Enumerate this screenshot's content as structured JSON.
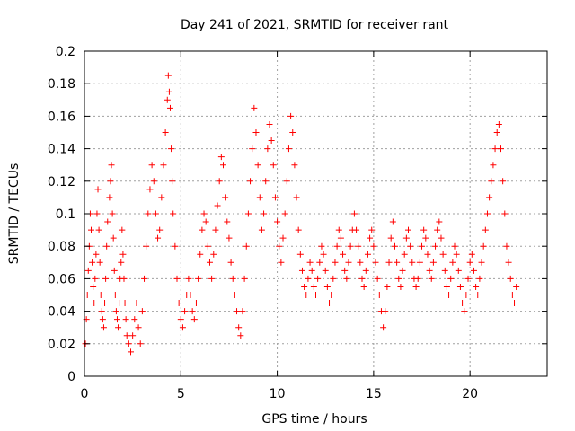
{
  "chart_data": {
    "type": "scatter",
    "title": "Day 241 of 2021, SRMTID for receiver rant",
    "xlabel": "GPS time / hours",
    "ylabel": "SRMTID / TECUs",
    "xlim": [
      0,
      24
    ],
    "ylim": [
      0,
      0.2
    ],
    "xticks": [
      0,
      5,
      10,
      15,
      20
    ],
    "xtick_labels": [
      "0",
      "5",
      "10",
      "15",
      "20"
    ],
    "yticks": [
      0,
      0.02,
      0.04,
      0.06,
      0.08,
      0.1,
      0.12,
      0.14,
      0.16,
      0.18,
      0.2
    ],
    "ytick_labels": [
      "0",
      "0.02",
      "0.04",
      "0.06",
      "0.08",
      "0.1",
      "0.12",
      "0.14",
      "0.16",
      "0.18",
      "0.2"
    ],
    "grid": true,
    "marker": "plus",
    "color": "#ff0000",
    "series": [
      {
        "name": "SRMTID",
        "x": [
          0.05,
          0.1,
          0.15,
          0.2,
          0.25,
          0.3,
          0.35,
          0.4,
          0.45,
          0.5,
          0.55,
          0.6,
          0.65,
          0.7,
          0.75,
          0.8,
          0.85,
          0.9,
          0.95,
          1.0,
          1.05,
          1.1,
          1.15,
          1.2,
          1.3,
          1.35,
          1.4,
          1.45,
          1.5,
          1.55,
          1.6,
          1.65,
          1.7,
          1.75,
          1.8,
          1.85,
          1.9,
          1.95,
          2.0,
          2.05,
          2.1,
          2.15,
          2.2,
          2.3,
          2.4,
          2.5,
          2.6,
          2.7,
          2.8,
          2.9,
          3.0,
          3.1,
          3.2,
          3.3,
          3.4,
          3.5,
          3.6,
          3.7,
          3.8,
          3.9,
          4.0,
          4.1,
          4.2,
          4.3,
          4.35,
          4.4,
          4.45,
          4.5,
          4.55,
          4.6,
          4.7,
          4.8,
          4.9,
          5.0,
          5.1,
          5.2,
          5.3,
          5.4,
          5.5,
          5.6,
          5.7,
          5.8,
          5.9,
          6.0,
          6.1,
          6.2,
          6.3,
          6.4,
          6.5,
          6.6,
          6.7,
          6.8,
          6.9,
          7.0,
          7.1,
          7.2,
          7.3,
          7.4,
          7.5,
          7.6,
          7.7,
          7.8,
          7.9,
          8.0,
          8.1,
          8.2,
          8.3,
          8.4,
          8.5,
          8.6,
          8.7,
          8.8,
          8.9,
          9.0,
          9.1,
          9.2,
          9.3,
          9.4,
          9.5,
          9.6,
          9.7,
          9.8,
          9.9,
          10.0,
          10.1,
          10.2,
          10.3,
          10.4,
          10.5,
          10.6,
          10.7,
          10.8,
          10.9,
          11.0,
          11.1,
          11.2,
          11.3,
          11.4,
          11.5,
          11.6,
          11.7,
          11.8,
          11.9,
          12.0,
          12.1,
          12.2,
          12.3,
          12.4,
          12.5,
          12.6,
          12.7,
          12.8,
          12.9,
          13.0,
          13.1,
          13.2,
          13.3,
          13.4,
          13.5,
          13.6,
          13.7,
          13.8,
          13.9,
          14.0,
          14.1,
          14.2,
          14.3,
          14.4,
          14.5,
          14.6,
          14.7,
          14.8,
          14.9,
          15.0,
          15.1,
          15.2,
          15.3,
          15.4,
          15.5,
          15.6,
          15.7,
          15.8,
          15.9,
          16.0,
          16.1,
          16.2,
          16.3,
          16.4,
          16.5,
          16.6,
          16.7,
          16.8,
          16.9,
          17.0,
          17.1,
          17.2,
          17.3,
          17.4,
          17.5,
          17.6,
          17.7,
          17.8,
          17.9,
          18.0,
          18.1,
          18.2,
          18.3,
          18.4,
          18.5,
          18.6,
          18.7,
          18.8,
          18.9,
          19.0,
          19.1,
          19.2,
          19.3,
          19.4,
          19.5,
          19.6,
          19.7,
          19.8,
          19.9,
          20.0,
          20.1,
          20.2,
          20.3,
          20.4,
          20.5,
          20.6,
          20.7,
          20.8,
          20.9,
          21.0,
          21.1,
          21.2,
          21.3,
          21.4,
          21.5,
          21.6,
          21.7,
          21.8,
          21.9,
          22.0,
          22.1,
          22.2,
          22.3,
          22.4
        ],
        "y": [
          0.02,
          0.035,
          0.05,
          0.065,
          0.08,
          0.1,
          0.09,
          0.07,
          0.055,
          0.045,
          0.06,
          0.075,
          0.1,
          0.115,
          0.09,
          0.07,
          0.05,
          0.04,
          0.035,
          0.03,
          0.045,
          0.06,
          0.08,
          0.095,
          0.11,
          0.12,
          0.13,
          0.1,
          0.085,
          0.065,
          0.05,
          0.04,
          0.035,
          0.03,
          0.045,
          0.06,
          0.07,
          0.09,
          0.075,
          0.06,
          0.045,
          0.035,
          0.025,
          0.02,
          0.015,
          0.025,
          0.035,
          0.045,
          0.03,
          0.02,
          0.04,
          0.06,
          0.08,
          0.1,
          0.115,
          0.13,
          0.12,
          0.1,
          0.085,
          0.09,
          0.11,
          0.13,
          0.15,
          0.17,
          0.185,
          0.175,
          0.165,
          0.14,
          0.12,
          0.1,
          0.08,
          0.06,
          0.045,
          0.035,
          0.03,
          0.04,
          0.05,
          0.06,
          0.05,
          0.04,
          0.035,
          0.045,
          0.06,
          0.075,
          0.09,
          0.1,
          0.095,
          0.08,
          0.07,
          0.06,
          0.075,
          0.09,
          0.105,
          0.12,
          0.135,
          0.13,
          0.11,
          0.095,
          0.085,
          0.07,
          0.06,
          0.05,
          0.04,
          0.03,
          0.025,
          0.04,
          0.06,
          0.08,
          0.1,
          0.12,
          0.14,
          0.165,
          0.15,
          0.13,
          0.11,
          0.09,
          0.1,
          0.12,
          0.14,
          0.155,
          0.145,
          0.13,
          0.11,
          0.095,
          0.08,
          0.07,
          0.085,
          0.1,
          0.12,
          0.14,
          0.16,
          0.15,
          0.13,
          0.11,
          0.09,
          0.075,
          0.065,
          0.055,
          0.05,
          0.06,
          0.07,
          0.065,
          0.055,
          0.05,
          0.06,
          0.07,
          0.08,
          0.075,
          0.065,
          0.055,
          0.045,
          0.05,
          0.06,
          0.07,
          0.08,
          0.09,
          0.085,
          0.075,
          0.065,
          0.06,
          0.07,
          0.08,
          0.09,
          0.1,
          0.09,
          0.08,
          0.07,
          0.06,
          0.055,
          0.065,
          0.075,
          0.085,
          0.09,
          0.08,
          0.07,
          0.06,
          0.05,
          0.04,
          0.03,
          0.04,
          0.055,
          0.07,
          0.085,
          0.095,
          0.08,
          0.07,
          0.06,
          0.055,
          0.065,
          0.075,
          0.085,
          0.09,
          0.08,
          0.07,
          0.06,
          0.055,
          0.06,
          0.07,
          0.08,
          0.09,
          0.085,
          0.075,
          0.065,
          0.06,
          0.07,
          0.08,
          0.09,
          0.095,
          0.085,
          0.075,
          0.065,
          0.055,
          0.05,
          0.06,
          0.07,
          0.08,
          0.075,
          0.065,
          0.055,
          0.045,
          0.04,
          0.05,
          0.06,
          0.07,
          0.075,
          0.065,
          0.055,
          0.05,
          0.06,
          0.07,
          0.08,
          0.09,
          0.1,
          0.11,
          0.12,
          0.13,
          0.14,
          0.15,
          0.155,
          0.14,
          0.12,
          0.1,
          0.08,
          0.07,
          0.06,
          0.05,
          0.045,
          0.055
        ]
      }
    ]
  }
}
